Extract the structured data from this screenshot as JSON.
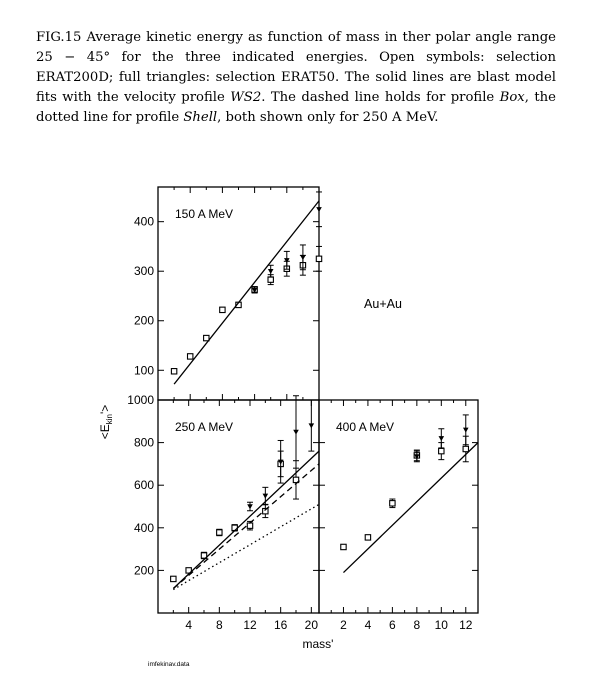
{
  "caption": {
    "p1": "FIG.15 Average kinetic energy as function of mass in ther polar angle range 25 − 45° for the three indicated energies. Open symbols: selection ERAT200D; full triangles: selection ERAT50. The solid lines are blast model fits with the velocity profile ",
    "ws2": "WS2",
    "p2": ". The dashed line holds for profile ",
    "box": "Box",
    "p3": ", the dotted line for profile ",
    "shell": "Shell",
    "p4": ", both shown only for 250 A MeV."
  },
  "chart_data": [
    {
      "type": "scatter",
      "title": "150 A MeV",
      "xlabel": "mass'",
      "ylabel": "<E_kin'>",
      "x_ticks": [
        4,
        8,
        12,
        16,
        20
      ],
      "y_ticks": [
        100,
        200,
        300,
        400
      ],
      "xlim": [
        0,
        20
      ],
      "ylim": [
        40,
        470
      ],
      "series": [
        {
          "marker": "open-square",
          "x": [
            2,
            4,
            6,
            8,
            10,
            12,
            14,
            16,
            18,
            20
          ],
          "y": [
            98,
            128,
            165,
            222,
            232,
            263,
            283,
            305,
            312,
            325
          ],
          "err": [
            3,
            4,
            5,
            5,
            5,
            6,
            10,
            15,
            20,
            25
          ]
        },
        {
          "marker": "full-triangle",
          "x": [
            12,
            14,
            16,
            18,
            20
          ],
          "y": [
            262,
            300,
            322,
            328,
            425
          ],
          "err": [
            6,
            12,
            18,
            25,
            35
          ]
        },
        {
          "marker": "solid-line",
          "x": [
            2,
            20
          ],
          "y": [
            72,
            442
          ]
        }
      ]
    },
    {
      "type": "scatter",
      "title": "250 A MeV",
      "xlabel": "mass'",
      "ylabel": "<E_kin'>",
      "x_ticks": [
        4,
        8,
        12,
        16,
        20
      ],
      "y_ticks": [
        200,
        400,
        600,
        800,
        1000
      ],
      "xlim": [
        0,
        21
      ],
      "ylim": [
        0,
        1000
      ],
      "series": [
        {
          "marker": "open-square",
          "x": [
            2,
            4,
            6,
            8,
            10,
            12,
            14,
            16,
            18
          ],
          "y": [
            160,
            200,
            270,
            378,
            400,
            410,
            478,
            700,
            625
          ],
          "err": [
            10,
            10,
            15,
            15,
            15,
            20,
            30,
            60,
            90
          ]
        },
        {
          "marker": "full-triangle",
          "x": [
            12,
            14,
            16,
            18,
            20
          ],
          "y": [
            500,
            550,
            710,
            850,
            880
          ],
          "err": [
            20,
            40,
            100,
            170,
            120
          ]
        },
        {
          "marker": "solid-line",
          "x": [
            2,
            21
          ],
          "y": [
            115,
            760
          ]
        },
        {
          "marker": "dashed-line",
          "x": [
            2,
            21
          ],
          "y": [
            115,
            700
          ]
        },
        {
          "marker": "dotted-line",
          "x": [
            2,
            21
          ],
          "y": [
            110,
            510
          ]
        }
      ]
    },
    {
      "type": "scatter",
      "title": "400 A MeV",
      "xlabel": "mass'",
      "x_ticks": [
        2,
        4,
        6,
        8,
        10,
        12
      ],
      "y_ticks": [
        200,
        400,
        600,
        800,
        1000
      ],
      "xlim": [
        0,
        13
      ],
      "ylim": [
        0,
        1000
      ],
      "series": [
        {
          "marker": "open-square",
          "x": [
            2,
            4,
            6,
            8,
            10,
            12
          ],
          "y": [
            310,
            355,
            515,
            740,
            760,
            770
          ],
          "err": [
            10,
            10,
            20,
            25,
            40,
            60
          ]
        },
        {
          "marker": "full-triangle",
          "x": [
            8,
            10,
            12
          ],
          "y": [
            735,
            820,
            860
          ],
          "err": [
            25,
            45,
            70
          ]
        },
        {
          "marker": "solid-line",
          "x": [
            2,
            13
          ],
          "y": [
            190,
            800
          ]
        }
      ]
    }
  ],
  "labels": {
    "system": "Au+Au",
    "xlabel": "mass'",
    "ylabel": "<E",
    "ylabel_sub": "kin",
    "ylabel_end": "'>",
    "footer": "imfekinav.data"
  }
}
